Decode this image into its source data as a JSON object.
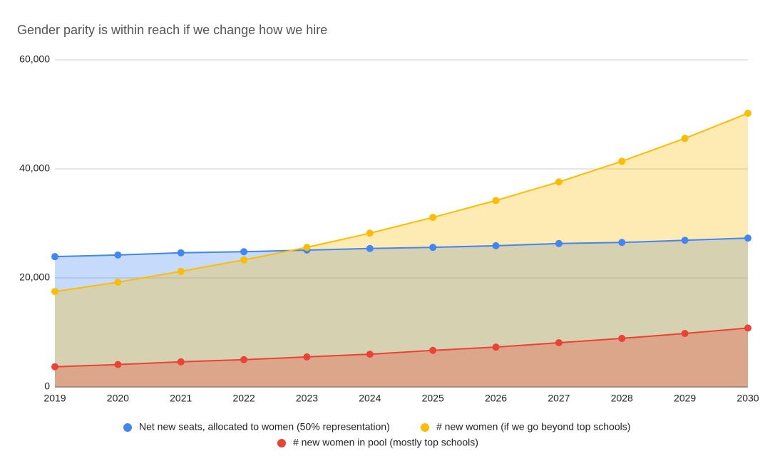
{
  "chart_data": {
    "type": "area",
    "title": "Gender parity is within reach if we change how we hire",
    "categories": [
      "2019",
      "2020",
      "2021",
      "2022",
      "2023",
      "2024",
      "2025",
      "2026",
      "2027",
      "2028",
      "2029",
      "2030"
    ],
    "series": [
      {
        "name": "Net new seats, allocated to women (50% representation)",
        "color": "#4285f4",
        "values": [
          23900,
          24200,
          24600,
          24800,
          25100,
          25400,
          25600,
          25900,
          26300,
          26500,
          26900,
          27300
        ]
      },
      {
        "name": "# new women (if we go beyond top schools)",
        "color": "#fbbc04",
        "values": [
          17500,
          19200,
          21200,
          23300,
          25600,
          28200,
          31100,
          34200,
          37600,
          41400,
          45600,
          50200
        ]
      },
      {
        "name": "# new women in pool (mostly top schools)",
        "color": "#ea4335",
        "values": [
          3700,
          4100,
          4600,
          5000,
          5500,
          6000,
          6700,
          7300,
          8100,
          8900,
          9800,
          10800
        ]
      }
    ],
    "ylim": [
      0,
      60000
    ],
    "yticks": [
      0,
      {
        "value": 20000,
        "label": "20,000"
      },
      {
        "value": 40000,
        "label": "40,000"
      },
      {
        "value": 60000,
        "label": "60,000"
      }
    ],
    "grid": true
  }
}
